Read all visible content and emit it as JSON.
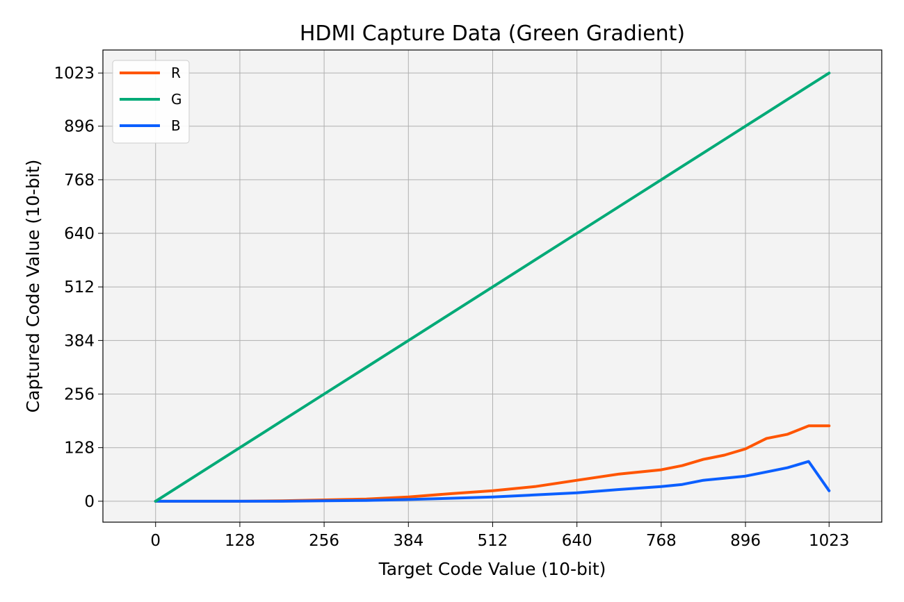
{
  "chart_data": {
    "type": "line",
    "title": "HDMI Capture Data (Green Gradient)",
    "xlabel": "Target Code Value (10-bit)",
    "ylabel": "Captured Code Value (10-bit)",
    "xlim": [
      -80,
      1103
    ],
    "ylim": [
      -50,
      1078
    ],
    "xticks": [
      "0",
      "128",
      "256",
      "384",
      "512",
      "640",
      "768",
      "896",
      "1023"
    ],
    "yticks": [
      "0",
      "128",
      "256",
      "384",
      "512",
      "640",
      "768",
      "896",
      "1023"
    ],
    "grid": true,
    "legend_position": "upper-left",
    "x": [
      0,
      64,
      128,
      192,
      256,
      320,
      384,
      448,
      512,
      576,
      640,
      704,
      768,
      800,
      832,
      864,
      896,
      928,
      960,
      992,
      1023
    ],
    "series": [
      {
        "name": "R",
        "color": "#ff5500",
        "values": [
          0,
          0,
          0,
          1,
          3,
          5,
          10,
          18,
          25,
          35,
          50,
          65,
          75,
          85,
          100,
          110,
          125,
          150,
          160,
          180,
          180
        ]
      },
      {
        "name": "G",
        "color": "#00aa77",
        "values": [
          0,
          64,
          128,
          192,
          256,
          320,
          384,
          448,
          512,
          576,
          640,
          704,
          768,
          800,
          832,
          864,
          896,
          928,
          960,
          992,
          1023
        ]
      },
      {
        "name": "B",
        "color": "#0b5fff",
        "values": [
          0,
          0,
          0,
          0,
          1,
          2,
          4,
          7,
          10,
          15,
          20,
          28,
          35,
          40,
          50,
          55,
          60,
          70,
          80,
          95,
          25
        ]
      }
    ]
  }
}
